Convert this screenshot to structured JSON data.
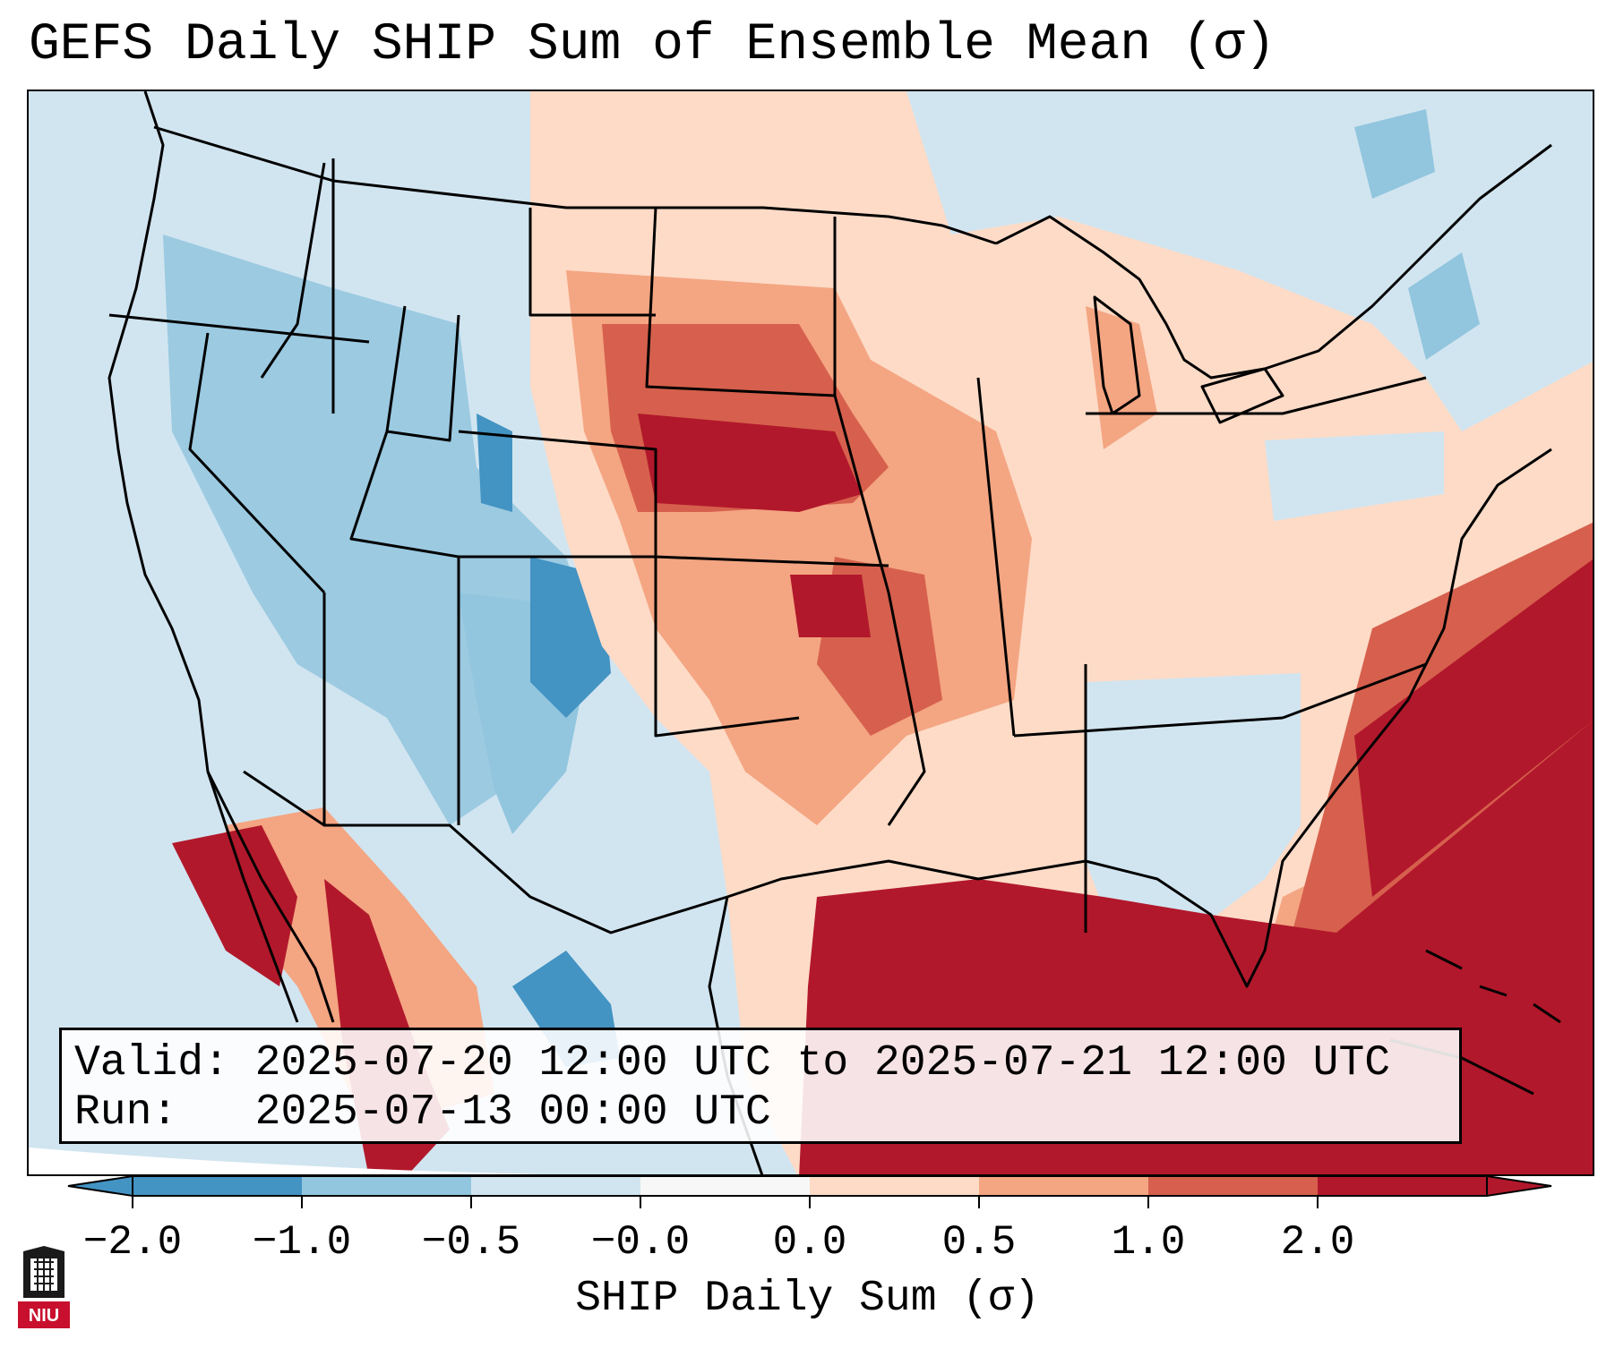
{
  "title": "GEFS Daily SHIP Sum of Ensemble Mean (σ)",
  "info": {
    "valid_label": "Valid:",
    "valid_value": "2025-07-20 12:00 UTC to 2025-07-21 12:00 UTC",
    "run_label": "Run:",
    "run_value": "2025-07-13 00:00 UTC"
  },
  "colorbar": {
    "label": "SHIP Daily Sum (σ)",
    "ticks": [
      "−2.0",
      "−1.0",
      "−0.5",
      "−0.0",
      "0.0",
      "0.5",
      "1.0",
      "2.0"
    ],
    "colors": [
      "#4393c3",
      "#92c5de",
      "#d1e5f0",
      "#f7f7f7",
      "#fddbc7",
      "#f4a582",
      "#d6604d",
      "#b2182b"
    ],
    "extend": "both"
  },
  "logo": {
    "text": "NIU",
    "color": "#c8102e"
  },
  "map_palette": {
    "ocean": "#d1e5f0",
    "neg_strong": "#4393c3",
    "neg": "#92c5de",
    "neg_light": "#d1e5f0",
    "pos_light": "#fddbc7",
    "pos": "#f4a582",
    "pos_mid": "#d6604d",
    "pos_strong": "#b2182b"
  }
}
